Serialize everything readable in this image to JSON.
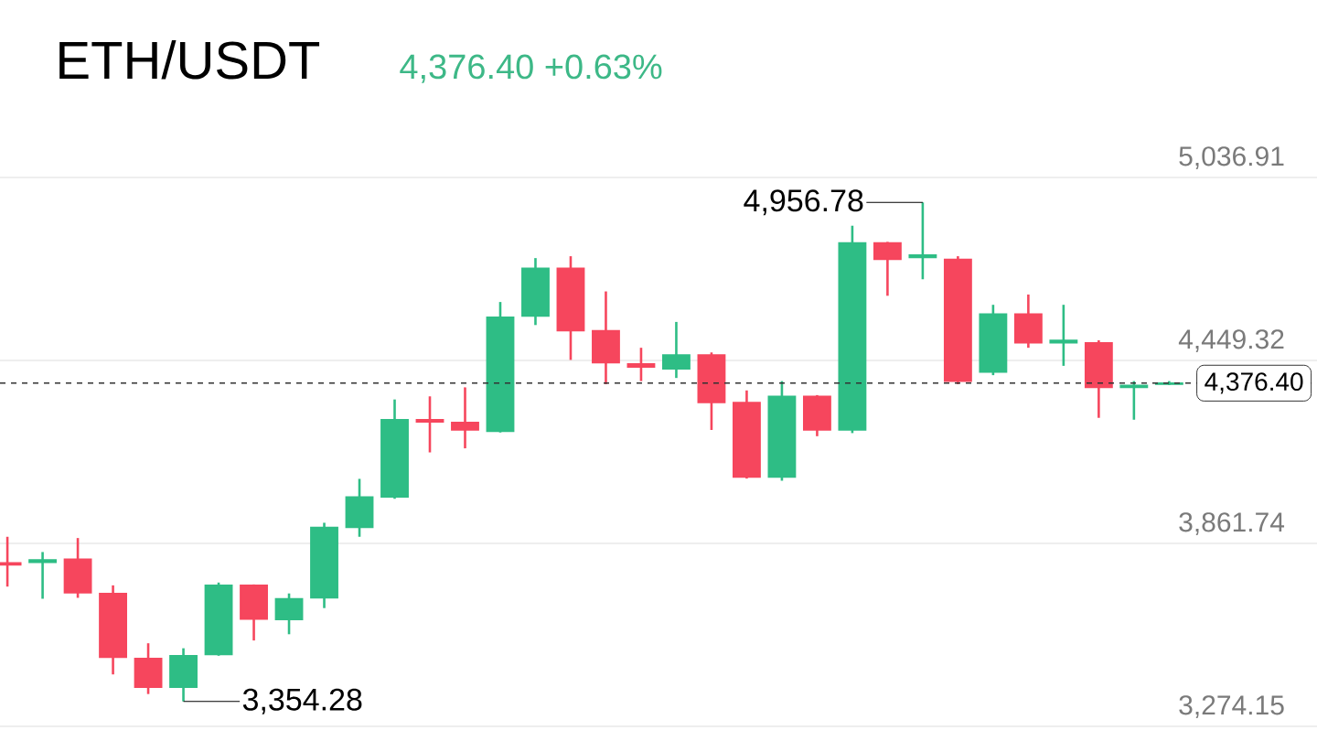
{
  "chart_data": {
    "type": "candlestick",
    "title": "ETH/USDT",
    "subtitle": "4,376.40  +0.63%",
    "categories": [
      null,
      null,
      null,
      null,
      null,
      null,
      null,
      null,
      null,
      null,
      null,
      null,
      null,
      null,
      null,
      null,
      null,
      null,
      null,
      null,
      null,
      null,
      null,
      null,
      null,
      null,
      null,
      null,
      null,
      null,
      null,
      null,
      null,
      null
    ],
    "ohlc": [
      [
        3799,
        3883,
        3723,
        3793
      ],
      [
        3801,
        3834,
        3684,
        3809
      ],
      [
        3811,
        3879,
        3687,
        3703
      ],
      [
        3701,
        3727,
        3441,
        3496
      ],
      [
        3492,
        3541,
        3378,
        3400
      ],
      [
        3400,
        3525,
        3354.28,
        3501
      ],
      [
        3505,
        3736,
        3501,
        3727
      ],
      [
        3727,
        3730,
        3550,
        3619
      ],
      [
        3617,
        3701,
        3570,
        3684
      ],
      [
        3687,
        3928,
        3654,
        3913
      ],
      [
        3913,
        4069,
        3883,
        4011
      ],
      [
        4011,
        4324,
        4005,
        4259
      ],
      [
        4259,
        4334,
        4154,
        4252
      ],
      [
        4250,
        4363,
        4167,
        4226
      ],
      [
        4222,
        4637,
        4218,
        4588
      ],
      [
        4592,
        4778,
        4563,
        4745
      ],
      [
        4745,
        4784,
        4451,
        4545
      ],
      [
        4545,
        4671,
        4373,
        4442
      ],
      [
        4438,
        4490,
        4383,
        4428
      ],
      [
        4422,
        4573,
        4393,
        4467
      ],
      [
        4467,
        4475,
        4226,
        4314
      ],
      [
        4314,
        4353,
        4070,
        4075
      ],
      [
        4075,
        4383,
        4063,
        4334
      ],
      [
        4334,
        4338,
        4206,
        4226
      ],
      [
        4226,
        4882,
        4216,
        4827
      ],
      [
        4827,
        4830,
        4657,
        4774
      ],
      [
        4780,
        4956.78,
        4710,
        4788
      ],
      [
        4774,
        4784,
        4373,
        4383
      ],
      [
        4412,
        4628,
        4402,
        4598
      ],
      [
        4598,
        4661,
        4490,
        4506
      ],
      [
        4506,
        4628,
        4432,
        4514
      ],
      [
        4506,
        4514,
        4265,
        4363
      ],
      [
        4363,
        4383,
        4259,
        4369
      ],
      [
        4373,
        4383,
        4370,
        4376.4
      ]
    ],
    "ylim": [
      3274.15,
      5036.91
    ],
    "yticks": [
      {
        "value": 3274.15,
        "label": "3,274.15"
      },
      {
        "value": 3861.74,
        "label": "3,861.74"
      },
      {
        "value": 4449.32,
        "label": "4,449.32"
      },
      {
        "value": 5036.91,
        "label": "5,036.91"
      }
    ],
    "grid": "y",
    "tick_labels": "y",
    "ref_lines": [
      {
        "axis": "y",
        "value": 4376.4,
        "label": "4,376.40",
        "color": "#333333",
        "line_style": "dashed"
      }
    ],
    "annotations": [
      "4,956.78",
      "3,354.28"
    ]
  }
}
